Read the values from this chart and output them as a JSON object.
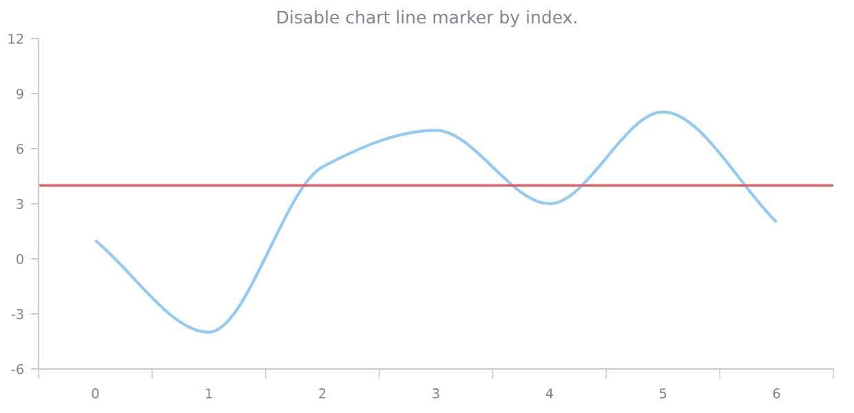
{
  "chart_data": {
    "type": "line",
    "title": "Disable chart line marker by index.",
    "categories": [
      "0",
      "1",
      "2",
      "3",
      "4",
      "5",
      "6"
    ],
    "series": [
      {
        "color": "#90caf9",
        "values": [
          1,
          -4,
          5,
          7,
          3,
          8,
          2
        ]
      }
    ],
    "ylim": [
      -6,
      12
    ],
    "yticks": [
      -6,
      -3,
      0,
      3,
      6,
      9,
      12
    ],
    "ref_lines": [
      {
        "axis": "y",
        "value": 4,
        "color": "#ef5350"
      }
    ],
    "grid": false,
    "marker": "none",
    "line_style": "solid"
  }
}
